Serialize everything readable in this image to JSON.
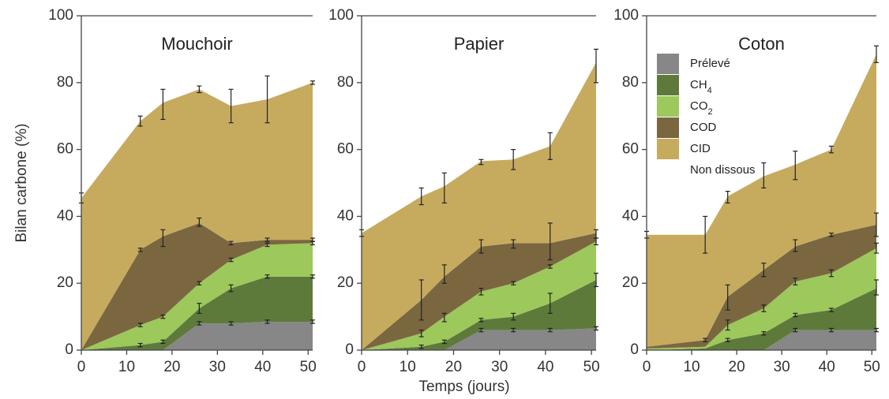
{
  "chart_data": {
    "type": "area",
    "stacked": true,
    "ylabel": "Bilan carbone (%)",
    "xlabel": "Temps (jours)",
    "ylim": [
      0,
      100
    ],
    "xlim": [
      0,
      51
    ],
    "y_ticks": [
      0,
      20,
      40,
      60,
      80,
      100
    ],
    "x_ticks": [
      0,
      10,
      20,
      30,
      40,
      50
    ],
    "grid": false,
    "legend": {
      "placement": "inside-right-panel",
      "entries": [
        {
          "key": "preleve",
          "label": "Prélevé",
          "sub": ""
        },
        {
          "key": "ch4",
          "label": "CH",
          "sub": "4"
        },
        {
          "key": "co2",
          "label": "CO",
          "sub": "2"
        },
        {
          "key": "cod",
          "label": "COD",
          "sub": ""
        },
        {
          "key": "cid",
          "label": "CID",
          "sub": ""
        },
        {
          "key": "non_dissous",
          "label": "Non dissous",
          "sub": ""
        }
      ]
    },
    "colors": {
      "preleve": "#878787",
      "ch4": "#5d7a3b",
      "co2": "#9cc85c",
      "cod": "#7a6740",
      "cid": "#c6ab5f",
      "non_dissous": "#ffffff"
    },
    "panels": [
      {
        "title": "Mouchoir",
        "x": [
          0,
          13,
          18,
          26,
          33,
          41,
          51
        ],
        "cumulative": {
          "preleve": [
            0,
            0,
            0,
            8,
            8,
            8.5,
            8.5
          ],
          "ch4": [
            0,
            1.5,
            2.5,
            12.5,
            18.5,
            22,
            22
          ],
          "co2": [
            0,
            7.5,
            10,
            20,
            27,
            31.5,
            32
          ],
          "cod": [
            0,
            30,
            34,
            38,
            32,
            33,
            33
          ],
          "cid": [
            45.5,
            68.5,
            74,
            78,
            73,
            75,
            80
          ]
        },
        "error_bars": [
          [
            0,
            44,
            47
          ],
          [
            13,
            67,
            70
          ],
          [
            18,
            69,
            78
          ],
          [
            26,
            77,
            79
          ],
          [
            33,
            68,
            78
          ],
          [
            41,
            68,
            82
          ],
          [
            51,
            79.5,
            80.5
          ],
          [
            13,
            29.5,
            30.5
          ],
          [
            18,
            31,
            36
          ],
          [
            26,
            37,
            39.5
          ],
          [
            33,
            31.5,
            32.5
          ],
          [
            41,
            32.5,
            33.5
          ],
          [
            51,
            32.5,
            33.5
          ],
          [
            13,
            7,
            8
          ],
          [
            18,
            9.5,
            10.5
          ],
          [
            26,
            19.5,
            20.5
          ],
          [
            33,
            26.5,
            27.5
          ],
          [
            41,
            31,
            32
          ],
          [
            51,
            31.5,
            32.5
          ],
          [
            13,
            1,
            2
          ],
          [
            18,
            2,
            3
          ],
          [
            26,
            11,
            14
          ],
          [
            33,
            17.5,
            19.5
          ],
          [
            41,
            21.5,
            22.5
          ],
          [
            51,
            21.5,
            22.5
          ],
          [
            26,
            7.5,
            8.5
          ],
          [
            33,
            7.5,
            8.5
          ],
          [
            41,
            8,
            9
          ],
          [
            51,
            8,
            9
          ]
        ]
      },
      {
        "title": "Papier",
        "x": [
          0,
          13,
          18,
          26,
          33,
          41,
          51
        ],
        "cumulative": {
          "preleve": [
            0,
            0,
            0,
            6,
            6,
            6,
            6.5
          ],
          "ch4": [
            0,
            1,
            2.5,
            9,
            10,
            14,
            21
          ],
          "co2": [
            0,
            5,
            10,
            17.5,
            20,
            25,
            32.5
          ],
          "cod": [
            0,
            15,
            22,
            31,
            32,
            32,
            35
          ],
          "cid": [
            35,
            46,
            49,
            56.5,
            57,
            61,
            86
          ]
        },
        "error_bars": [
          [
            0,
            34,
            36
          ],
          [
            13,
            43.5,
            48.5
          ],
          [
            18,
            44,
            53
          ],
          [
            26,
            55.5,
            57
          ],
          [
            33,
            54,
            60
          ],
          [
            41,
            57,
            65
          ],
          [
            51,
            80,
            90
          ],
          [
            13,
            9,
            21
          ],
          [
            18,
            20,
            25.5
          ],
          [
            26,
            29,
            33
          ],
          [
            33,
            30.5,
            33
          ],
          [
            41,
            27,
            38
          ],
          [
            51,
            33.5,
            36
          ],
          [
            13,
            4,
            6
          ],
          [
            18,
            8.5,
            11
          ],
          [
            26,
            16.5,
            18.5
          ],
          [
            33,
            19.5,
            20.5
          ],
          [
            41,
            24.5,
            25.5
          ],
          [
            51,
            31.5,
            33.5
          ],
          [
            13,
            0.5,
            1.5
          ],
          [
            18,
            2,
            3
          ],
          [
            26,
            8.5,
            9.5
          ],
          [
            33,
            9,
            11
          ],
          [
            41,
            11,
            17
          ],
          [
            51,
            19,
            23
          ],
          [
            26,
            5.5,
            6.5
          ],
          [
            33,
            5.5,
            6.5
          ],
          [
            41,
            5.5,
            6.5
          ],
          [
            51,
            6,
            7
          ]
        ]
      },
      {
        "title": "Coton",
        "x": [
          0,
          13,
          18,
          26,
          33,
          41,
          51
        ],
        "cumulative": {
          "preleve": [
            0,
            0,
            0,
            0,
            6,
            6,
            6
          ],
          "ch4": [
            0,
            0.5,
            3,
            5,
            10.5,
            12,
            18.5
          ],
          "co2": [
            0.5,
            1,
            7.5,
            12.5,
            20.5,
            23,
            30.5
          ],
          "cod": [
            1,
            3,
            16,
            24,
            31,
            34.5,
            37.5
          ],
          "cid": [
            34.5,
            34.5,
            46,
            52,
            55.5,
            60,
            88.5
          ]
        },
        "error_bars": [
          [
            0,
            33.5,
            35.5
          ],
          [
            13,
            29,
            40
          ],
          [
            18,
            44,
            47.5
          ],
          [
            26,
            48.5,
            56
          ],
          [
            33,
            51,
            59.5
          ],
          [
            41,
            59,
            61
          ],
          [
            51,
            86,
            91
          ],
          [
            13,
            2.5,
            3.5
          ],
          [
            18,
            12,
            19.5
          ],
          [
            26,
            22,
            26
          ],
          [
            33,
            29.5,
            33
          ],
          [
            41,
            34,
            35
          ],
          [
            51,
            34,
            41
          ],
          [
            18,
            6,
            9
          ],
          [
            26,
            11.5,
            13.5
          ],
          [
            33,
            19.5,
            21.5
          ],
          [
            41,
            22,
            24
          ],
          [
            51,
            29,
            32
          ],
          [
            18,
            2.5,
            3.5
          ],
          [
            26,
            4.5,
            5.5
          ],
          [
            33,
            10,
            11
          ],
          [
            41,
            11.5,
            12.5
          ],
          [
            51,
            16.5,
            21
          ],
          [
            33,
            5.5,
            6.5
          ],
          [
            41,
            5.5,
            6.5
          ],
          [
            51,
            5.5,
            6.5
          ]
        ]
      }
    ]
  }
}
